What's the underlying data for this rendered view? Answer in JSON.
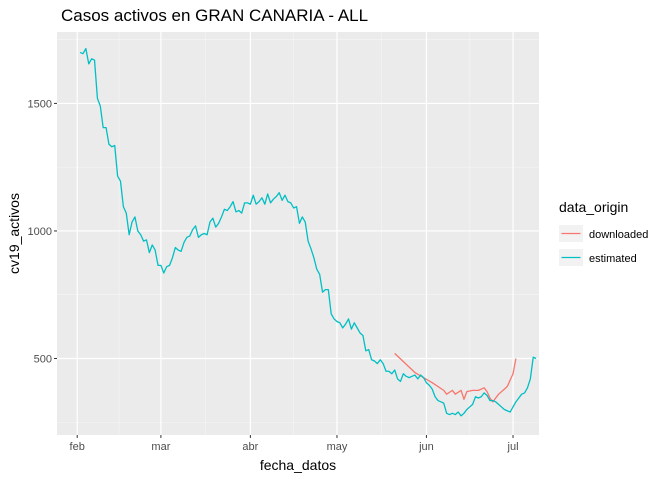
{
  "chart_data": {
    "type": "line",
    "title": "Casos activos en GRAN CANARIA - ALL",
    "xlabel": "fecha_datos",
    "ylabel": "cv19_activos",
    "x_tick_labels": [
      "feb",
      "mar",
      "abr",
      "may",
      "jun",
      "jul"
    ],
    "x_tick_dates": [
      "2020-02-01",
      "2020-03-01",
      "2020-04-01",
      "2020-05-01",
      "2020-06-01",
      "2020-07-01"
    ],
    "y_ticks": [
      500,
      1000,
      1500
    ],
    "xlim": [
      "2020-01-25",
      "2020-07-10"
    ],
    "ylim": [
      200,
      1780
    ],
    "grid": true,
    "legend": {
      "title": "data_origin",
      "position": "right",
      "entries": [
        "downloaded",
        "estimated"
      ]
    },
    "series": [
      {
        "name": "downloaded",
        "color": "#F8766D",
        "points": [
          [
            "2020-05-21",
            520
          ],
          [
            "2020-05-28",
            445
          ],
          [
            "2020-06-03",
            405
          ],
          [
            "2020-06-07",
            375
          ],
          [
            "2020-06-08",
            360
          ],
          [
            "2020-06-10",
            375
          ],
          [
            "2020-06-11",
            360
          ],
          [
            "2020-06-13",
            375
          ],
          [
            "2020-06-14",
            340
          ],
          [
            "2020-06-15",
            370
          ],
          [
            "2020-06-17",
            375
          ],
          [
            "2020-06-19",
            375
          ],
          [
            "2020-06-21",
            385
          ],
          [
            "2020-06-22",
            370
          ],
          [
            "2020-06-23",
            345
          ],
          [
            "2020-06-24",
            330
          ],
          [
            "2020-06-26",
            360
          ],
          [
            "2020-06-28",
            380
          ],
          [
            "2020-06-29",
            390
          ],
          [
            "2020-07-01",
            440
          ],
          [
            "2020-07-02",
            500
          ]
        ]
      },
      {
        "name": "estimated",
        "color": "#00BFC4",
        "points": [
          [
            "2020-02-02",
            1700
          ],
          [
            "2020-02-03",
            1695
          ],
          [
            "2020-02-04",
            1715
          ],
          [
            "2020-02-05",
            1655
          ],
          [
            "2020-02-06",
            1675
          ],
          [
            "2020-02-07",
            1670
          ],
          [
            "2020-02-08",
            1520
          ],
          [
            "2020-02-09",
            1490
          ],
          [
            "2020-02-10",
            1405
          ],
          [
            "2020-02-11",
            1405
          ],
          [
            "2020-02-12",
            1340
          ],
          [
            "2020-02-13",
            1330
          ],
          [
            "2020-02-14",
            1335
          ],
          [
            "2020-02-15",
            1215
          ],
          [
            "2020-02-16",
            1195
          ],
          [
            "2020-02-17",
            1095
          ],
          [
            "2020-02-18",
            1070
          ],
          [
            "2020-02-19",
            985
          ],
          [
            "2020-02-20",
            1035
          ],
          [
            "2020-02-21",
            1055
          ],
          [
            "2020-02-22",
            1000
          ],
          [
            "2020-02-23",
            985
          ],
          [
            "2020-02-24",
            960
          ],
          [
            "2020-02-25",
            965
          ],
          [
            "2020-02-26",
            915
          ],
          [
            "2020-02-27",
            945
          ],
          [
            "2020-02-28",
            925
          ],
          [
            "2020-02-29",
            865
          ],
          [
            "2020-03-01",
            865
          ],
          [
            "2020-03-02",
            835
          ],
          [
            "2020-03-03",
            860
          ],
          [
            "2020-03-04",
            865
          ],
          [
            "2020-03-05",
            895
          ],
          [
            "2020-03-06",
            935
          ],
          [
            "2020-03-07",
            925
          ],
          [
            "2020-03-08",
            920
          ],
          [
            "2020-03-09",
            955
          ],
          [
            "2020-03-10",
            975
          ],
          [
            "2020-03-11",
            980
          ],
          [
            "2020-03-12",
            1005
          ],
          [
            "2020-03-13",
            1020
          ],
          [
            "2020-03-14",
            975
          ],
          [
            "2020-03-15",
            985
          ],
          [
            "2020-03-16",
            990
          ],
          [
            "2020-03-17",
            985
          ],
          [
            "2020-03-18",
            1035
          ],
          [
            "2020-03-19",
            1050
          ],
          [
            "2020-03-20",
            1015
          ],
          [
            "2020-03-21",
            1030
          ],
          [
            "2020-03-22",
            1055
          ],
          [
            "2020-03-23",
            1085
          ],
          [
            "2020-03-24",
            1080
          ],
          [
            "2020-03-25",
            1095
          ],
          [
            "2020-03-26",
            1115
          ],
          [
            "2020-03-27",
            1075
          ],
          [
            "2020-03-28",
            1080
          ],
          [
            "2020-03-29",
            1070
          ],
          [
            "2020-03-30",
            1110
          ],
          [
            "2020-03-31",
            1110
          ],
          [
            "2020-04-01",
            1105
          ],
          [
            "2020-04-02",
            1140
          ],
          [
            "2020-04-03",
            1105
          ],
          [
            "2020-04-04",
            1115
          ],
          [
            "2020-04-05",
            1130
          ],
          [
            "2020-04-06",
            1105
          ],
          [
            "2020-04-07",
            1145
          ],
          [
            "2020-04-08",
            1110
          ],
          [
            "2020-04-09",
            1125
          ],
          [
            "2020-04-10",
            1135
          ],
          [
            "2020-04-11",
            1150
          ],
          [
            "2020-04-12",
            1120
          ],
          [
            "2020-04-13",
            1140
          ],
          [
            "2020-04-14",
            1115
          ],
          [
            "2020-04-15",
            1110
          ],
          [
            "2020-04-16",
            1090
          ],
          [
            "2020-04-17",
            1095
          ],
          [
            "2020-04-18",
            1030
          ],
          [
            "2020-04-19",
            1055
          ],
          [
            "2020-04-20",
            1035
          ],
          [
            "2020-04-21",
            960
          ],
          [
            "2020-04-22",
            930
          ],
          [
            "2020-04-23",
            895
          ],
          [
            "2020-04-24",
            850
          ],
          [
            "2020-04-25",
            830
          ],
          [
            "2020-04-26",
            760
          ],
          [
            "2020-04-27",
            770
          ],
          [
            "2020-04-28",
            770
          ],
          [
            "2020-04-29",
            675
          ],
          [
            "2020-04-30",
            655
          ],
          [
            "2020-05-01",
            645
          ],
          [
            "2020-05-02",
            640
          ],
          [
            "2020-05-03",
            620
          ],
          [
            "2020-05-04",
            635
          ],
          [
            "2020-05-05",
            655
          ],
          [
            "2020-05-06",
            615
          ],
          [
            "2020-05-07",
            640
          ],
          [
            "2020-05-08",
            620
          ],
          [
            "2020-05-09",
            600
          ],
          [
            "2020-05-10",
            590
          ],
          [
            "2020-05-11",
            530
          ],
          [
            "2020-05-12",
            535
          ],
          [
            "2020-05-13",
            495
          ],
          [
            "2020-05-14",
            490
          ],
          [
            "2020-05-15",
            480
          ],
          [
            "2020-05-16",
            495
          ],
          [
            "2020-05-17",
            480
          ],
          [
            "2020-05-18",
            450
          ],
          [
            "2020-05-19",
            450
          ],
          [
            "2020-05-20",
            440
          ],
          [
            "2020-05-21",
            455
          ],
          [
            "2020-05-22",
            420
          ],
          [
            "2020-05-23",
            410
          ],
          [
            "2020-05-24",
            440
          ],
          [
            "2020-05-25",
            430
          ],
          [
            "2020-05-26",
            425
          ],
          [
            "2020-05-27",
            430
          ],
          [
            "2020-05-28",
            435
          ],
          [
            "2020-05-29",
            420
          ],
          [
            "2020-05-30",
            435
          ],
          [
            "2020-05-31",
            425
          ],
          [
            "2020-06-01",
            405
          ],
          [
            "2020-06-02",
            395
          ],
          [
            "2020-06-03",
            380
          ],
          [
            "2020-06-04",
            350
          ],
          [
            "2020-06-05",
            335
          ],
          [
            "2020-06-06",
            330
          ],
          [
            "2020-06-07",
            325
          ],
          [
            "2020-06-08",
            285
          ],
          [
            "2020-06-09",
            280
          ],
          [
            "2020-06-10",
            285
          ],
          [
            "2020-06-11",
            280
          ],
          [
            "2020-06-12",
            290
          ],
          [
            "2020-06-13",
            275
          ],
          [
            "2020-06-14",
            285
          ],
          [
            "2020-06-15",
            300
          ],
          [
            "2020-06-16",
            310
          ],
          [
            "2020-06-17",
            320
          ],
          [
            "2020-06-18",
            350
          ],
          [
            "2020-06-19",
            345
          ],
          [
            "2020-06-20",
            350
          ],
          [
            "2020-06-21",
            365
          ],
          [
            "2020-06-22",
            355
          ],
          [
            "2020-06-23",
            335
          ],
          [
            "2020-06-24",
            335
          ],
          [
            "2020-06-25",
            330
          ],
          [
            "2020-06-26",
            320
          ],
          [
            "2020-06-27",
            310
          ],
          [
            "2020-06-28",
            300
          ],
          [
            "2020-06-29",
            295
          ],
          [
            "2020-06-30",
            290
          ],
          [
            "2020-07-01",
            310
          ],
          [
            "2020-07-02",
            330
          ],
          [
            "2020-07-03",
            345
          ],
          [
            "2020-07-04",
            360
          ],
          [
            "2020-07-05",
            365
          ],
          [
            "2020-07-06",
            385
          ],
          [
            "2020-07-07",
            420
          ],
          [
            "2020-07-08",
            505
          ],
          [
            "2020-07-09",
            500
          ]
        ]
      }
    ]
  }
}
